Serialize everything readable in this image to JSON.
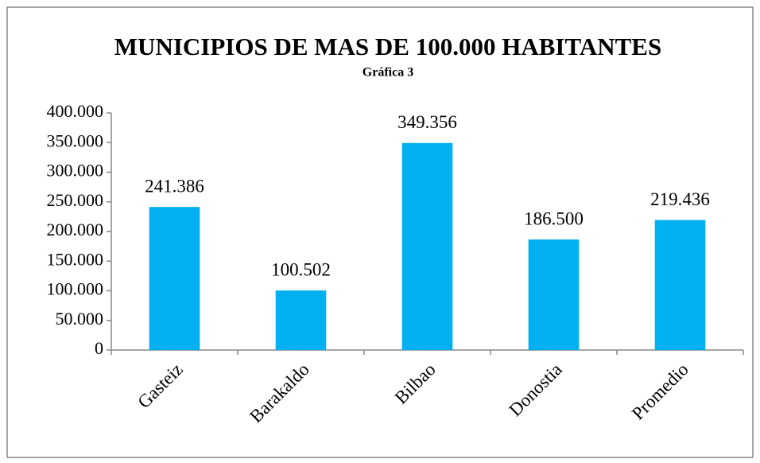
{
  "chart_data": {
    "type": "bar",
    "title": "MUNICIPIOS DE MAS DE 100.000 HABITANTES",
    "subtitle": "Gráfica 3",
    "categories": [
      "Gasteiz",
      "Barakaldo",
      "Bilbao",
      "Donostia",
      "Promedio"
    ],
    "values": [
      241386,
      100502,
      349356,
      186500,
      219436
    ],
    "value_labels": [
      "241.386",
      "100.502",
      "349.356",
      "186.500",
      "219.436"
    ],
    "color": "#00b0f0",
    "ylim": [
      0,
      400000
    ],
    "yticks": [
      0,
      {
        "value": 50000,
        "label": "50.000"
      },
      {
        "value": 100000,
        "label": "100.000"
      },
      {
        "value": 150000,
        "label": "150.000"
      },
      {
        "value": 200000,
        "label": "200.000"
      },
      {
        "value": 250000,
        "label": "250.000"
      },
      {
        "value": 300000,
        "label": "300.000"
      },
      {
        "value": 350000,
        "label": "350.000"
      },
      {
        "value": 400000,
        "label": "400.000"
      }
    ],
    "grid": false
  }
}
